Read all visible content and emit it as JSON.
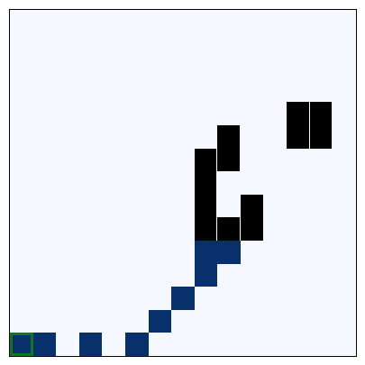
{
  "board": {
    "grid_size": 15,
    "background_color": "#f5f9ff",
    "border_color": "#000000",
    "colors": {
      "black": "#000000",
      "blue": "#08306b",
      "agent_outline": "#0b7a1f"
    },
    "cells": [
      {
        "row": 4,
        "col": 12,
        "type": "black"
      },
      {
        "row": 4,
        "col": 13,
        "type": "black"
      },
      {
        "row": 5,
        "col": 12,
        "type": "black"
      },
      {
        "row": 5,
        "col": 13,
        "type": "black"
      },
      {
        "row": 5,
        "col": 9,
        "type": "black"
      },
      {
        "row": 6,
        "col": 8,
        "type": "black"
      },
      {
        "row": 6,
        "col": 9,
        "type": "black"
      },
      {
        "row": 7,
        "col": 8,
        "type": "black"
      },
      {
        "row": 8,
        "col": 8,
        "type": "black"
      },
      {
        "row": 8,
        "col": 10,
        "type": "black"
      },
      {
        "row": 9,
        "col": 8,
        "type": "black"
      },
      {
        "row": 9,
        "col": 9,
        "type": "black"
      },
      {
        "row": 9,
        "col": 10,
        "type": "black"
      },
      {
        "row": 10,
        "col": 8,
        "type": "blue"
      },
      {
        "row": 10,
        "col": 9,
        "type": "blue"
      },
      {
        "row": 11,
        "col": 8,
        "type": "blue"
      },
      {
        "row": 12,
        "col": 7,
        "type": "blue"
      },
      {
        "row": 13,
        "col": 6,
        "type": "blue"
      },
      {
        "row": 14,
        "col": 1,
        "type": "blue"
      },
      {
        "row": 14,
        "col": 3,
        "type": "blue"
      },
      {
        "row": 14,
        "col": 5,
        "type": "blue"
      },
      {
        "row": 14,
        "col": 0,
        "type": "agent"
      }
    ]
  }
}
